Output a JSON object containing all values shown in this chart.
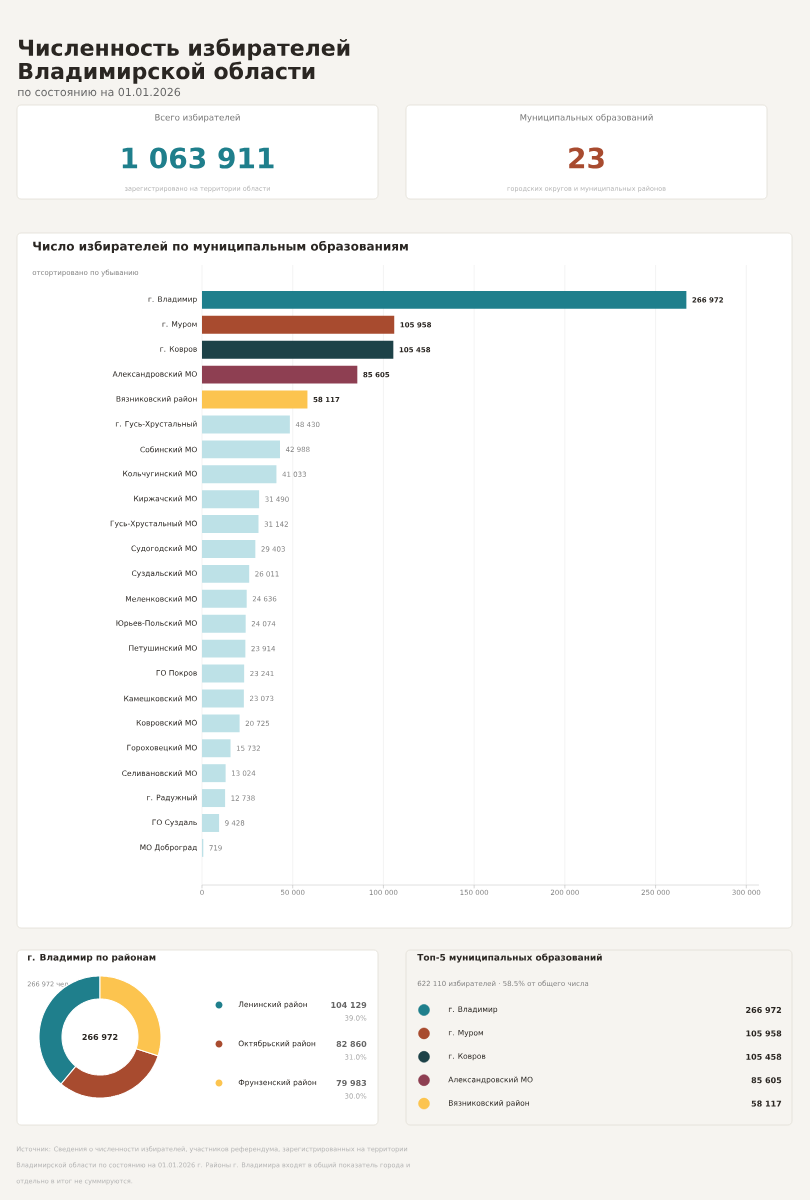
{
  "chart_data": [
    {
      "type": "other",
      "title": "Численность избирателей Владимирской области",
      "subtitle": "по состоянию на 01.01.2026",
      "annotations": [
        "Источник: Сведения о численности избирателей, участников референдума, зарегистрированных на территории Владимирской области по состоянию на 01.01.2026 г. Районы г. Владимира входят в общий показатель города и отдельно в итог не суммируются."
      ]
    },
    {
      "type": "other",
      "title": "Всего избирателей",
      "annotations": [
        "1 063 911",
        "зарегистрировано на территории области"
      ],
      "color": "#1f7f8c"
    },
    {
      "type": "other",
      "title": "Муниципальных образований",
      "annotations": [
        "23",
        "городских округов и муниципальных районов"
      ],
      "color": "#a84b2f"
    },
    {
      "type": "bar",
      "orientation": "horizontal",
      "title": "Число избирателей по муниципальным образованиям",
      "subtitle": "отсортировано по убыванию",
      "categories": [
        "г. Владимир",
        "г. Муром",
        "г. Ковров",
        "Александровский МО",
        "Вязниковский район",
        "г. Гусь-Хрустальный",
        "Собинский МО",
        "Кольчугинский МО",
        "Киржачский МО",
        "Гусь-Хрустальный МО",
        "Судогодский МО",
        "Суздальский МО",
        "Меленковский МО",
        "Юрьев-Польский МО",
        "Петушинский МО",
        "ГО Покров",
        "Камешковский МО",
        "Ковровский МО",
        "Гороховецкий МО",
        "Селивановский МО",
        "г. Радужный",
        "ГО Суздаль",
        "МО Доброград"
      ],
      "values": [
        266972,
        105958,
        105458,
        85605,
        58117,
        48430,
        42988,
        41033,
        31490,
        31142,
        29403,
        26011,
        24636,
        24074,
        23914,
        23241,
        23073,
        20725,
        15732,
        13024,
        12738,
        9428,
        719
      ],
      "value_labels": [
        "266 972",
        "105 958",
        "105 458",
        "85 605",
        "58 117",
        "48 430",
        "42 988",
        "41 033",
        "31 490",
        "31 142",
        "29 403",
        "26 011",
        "24 636",
        "24 074",
        "23 914",
        "23 241",
        "23 073",
        "20 725",
        "15 732",
        "13 024",
        "12 738",
        "9 428",
        "719"
      ],
      "colors": [
        "#1f7f8c",
        "#a84b2f",
        "#1d4248",
        "#8e3f52",
        "#fcc44f",
        "#bde1e7",
        "#bde1e7",
        "#bde1e7",
        "#bde1e7",
        "#bde1e7",
        "#bde1e7",
        "#bde1e7",
        "#bde1e7",
        "#bde1e7",
        "#bde1e7",
        "#bde1e7",
        "#bde1e7",
        "#bde1e7",
        "#bde1e7",
        "#bde1e7",
        "#bde1e7",
        "#bde1e7",
        "#bde1e7"
      ],
      "xlim": [
        0,
        307000
      ],
      "xticks": [
        0,
        {
          "value": 50000,
          "label": "50 000"
        },
        {
          "value": 100000,
          "label": "100 000"
        },
        {
          "value": 150000,
          "label": "150 000"
        },
        {
          "value": 200000,
          "label": "200 000"
        },
        {
          "value": 250000,
          "label": "250 000"
        },
        {
          "value": 300000,
          "label": "300 000"
        }
      ],
      "grid": "x"
    },
    {
      "type": "donut",
      "title": "г. Владимир по районам",
      "categories": [
        "Ленинский район",
        "Октябрьский район",
        "Фрунзенский район"
      ],
      "values": [
        104129,
        82860,
        79983
      ],
      "value_labels": [
        "104 129",
        "82 860",
        "79 983"
      ],
      "colors": [
        "#1f7f8c",
        "#a84b2f",
        "#fcc44f"
      ],
      "legend": "right",
      "annotations": [
        "266 972 чел.",
        "266 972",
        "39.0%",
        "31.0%",
        "30.0%"
      ]
    },
    {
      "type": "other",
      "title": "Топ-5 муниципальных образований",
      "subtitle": "622 110 избирателей · 58.5% от общего числа",
      "categories": [
        "г. Владимир",
        "г. Муром",
        "г. Ковров",
        "Александровский МО",
        "Вязниковский район"
      ],
      "values": [
        266972,
        105958,
        105458,
        85605,
        58117
      ],
      "value_labels": [
        "266 972",
        "105 958",
        "105 458",
        "85 605",
        "58 117"
      ],
      "colors": [
        "#1f7f8c",
        "#a84b2f",
        "#1d4248",
        "#8e3f52",
        "#fcc44f"
      ]
    }
  ]
}
